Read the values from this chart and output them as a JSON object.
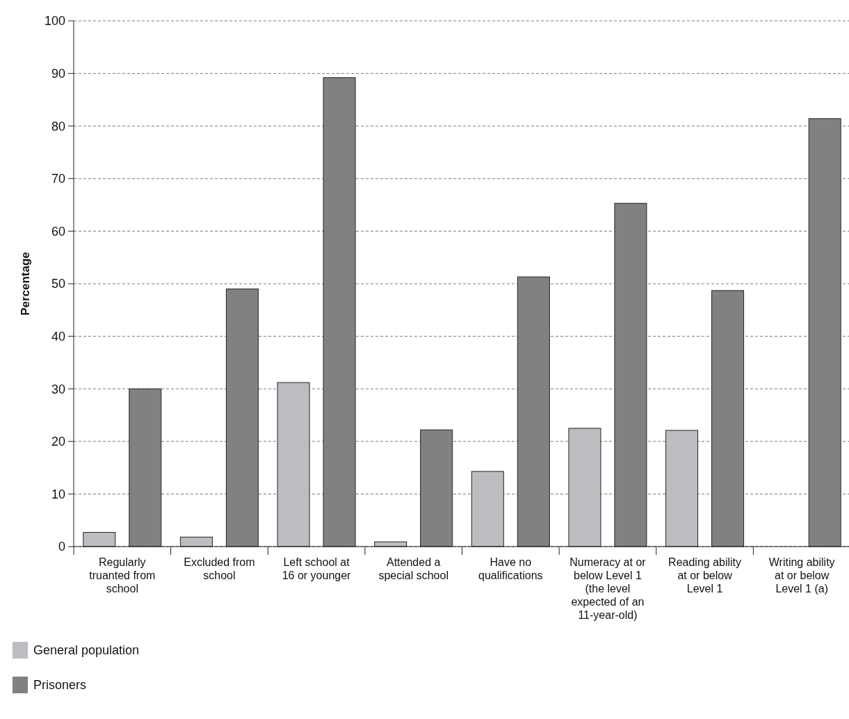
{
  "chart_data": {
    "type": "bar",
    "ylabel": "Percentage",
    "categories": [
      "Regularly truanted from school",
      "Excluded from school",
      "Left school at 16 or younger",
      "Attended a special school",
      "Have no qualifications",
      "Numeracy at or below Level 1 (the level expected of an 11-year-old)",
      "Reading ability at or below Level 1",
      "Writing ability at or below Level 1 (a)"
    ],
    "series": [
      {
        "name": "General population",
        "color": "#bcbdc0",
        "values": [
          2.7,
          1.8,
          31.2,
          0.9,
          14.3,
          22.5,
          22.1,
          null
        ]
      },
      {
        "name": "Prisoners",
        "color": "#808183",
        "values": [
          30,
          49,
          89.2,
          22.2,
          51.3,
          65.3,
          48.7,
          81.4
        ]
      }
    ],
    "ylim": [
      0,
      100
    ],
    "yticks": [
      0,
      10,
      20,
      30,
      40,
      50,
      60,
      70,
      80,
      90,
      100
    ],
    "grid": "y",
    "legend": "bottom left"
  }
}
